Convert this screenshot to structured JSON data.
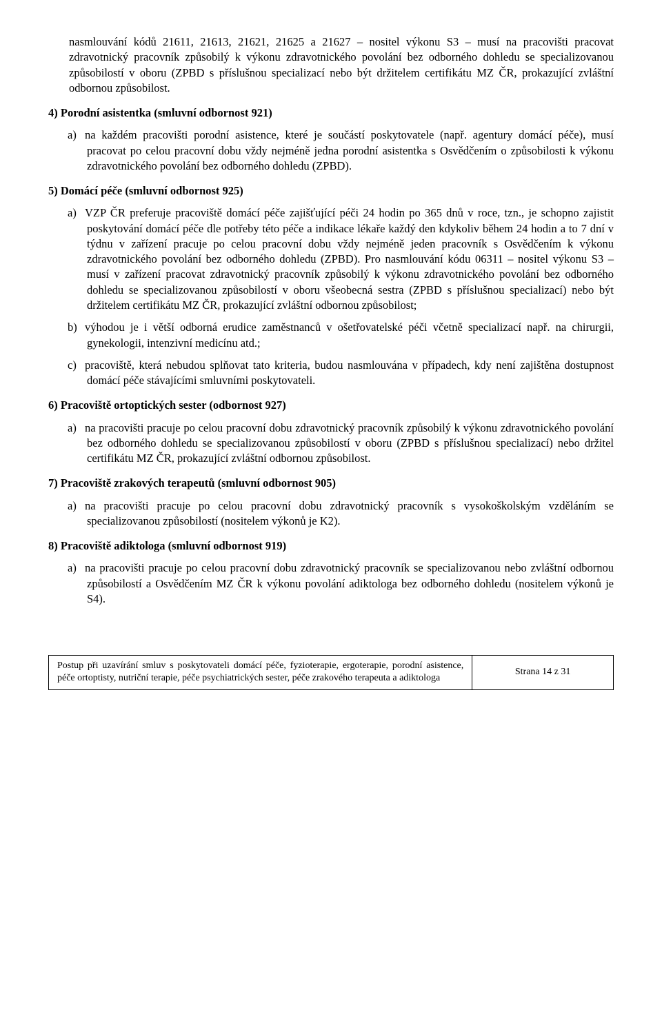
{
  "openingPara": "nasmlouvání kódů 21611, 21613, 21621, 21625 a 21627 – nositel výkonu S3 – musí na pracovišti pracovat zdravotnický pracovník způsobilý k výkonu zdravotnického povolání bez odborného dohledu se specializovanou způsobilostí v oboru (ZPBD s příslušnou specializací nebo být držitelem certifikátu MZ ČR, prokazující zvláštní odbornou způsobilost.",
  "section4": {
    "heading": "4) Porodní asistentka (smluvní odbornost 921)",
    "items": {
      "a": "na každém pracovišti porodní asistence, které je součástí poskytovatele (např. agentury domácí péče), musí pracovat po celou pracovní dobu vždy nejméně jedna porodní asistentka s Osvědčením o způsobilosti k výkonu zdravotnického povolání bez odborného dohledu (ZPBD)."
    }
  },
  "section5": {
    "heading": "5) Domácí péče (smluvní odbornost 925)",
    "items": {
      "a": "VZP ČR preferuje pracoviště domácí péče zajišťující péči 24 hodin po 365 dnů v roce, tzn., je schopno zajistit poskytování domácí péče dle potřeby této péče a indikace lékaře každý den kdykoliv během 24 hodin a to 7 dní v týdnu v zařízení pracuje po celou pracovní dobu vždy nejméně jeden pracovník s Osvědčením k výkonu zdravotnického povolání bez odborného dohledu (ZPBD). Pro nasmlouvání kódu 06311 – nositel výkonu S3 – musí v zařízení pracovat zdravotnický pracovník způsobilý k výkonu zdravotnického povolání bez odborného dohledu se specializovanou způsobilostí v oboru všeobecná sestra (ZPBD s příslušnou specializací) nebo být držitelem certifikátu MZ ČR, prokazující zvláštní odbornou způsobilost;",
      "b": "výhodou je i větší odborná erudice zaměstnanců v ošetřovatelské péči včetně specializací např. na chirurgii, gynekologii, intenzivní medicínu atd.;",
      "c": "pracoviště, která nebudou splňovat tato kriteria, budou nasmlouvána v případech, kdy není zajištěna dostupnost domácí péče stávajícími smluvními poskytovateli."
    }
  },
  "section6": {
    "heading": "6) Pracoviště ortoptických sester (odbornost 927)",
    "items": {
      "a": "na pracovišti pracuje po celou pracovní dobu zdravotnický pracovník způsobilý k výkonu zdravotnického povolání bez odborného dohledu se specializovanou způsobilostí v oboru (ZPBD s příslušnou specializací) nebo držitel certifikátu MZ ČR, prokazující zvláštní odbornou způsobilost."
    }
  },
  "section7": {
    "heading": "7)  Pracoviště zrakových terapeutů (smluvní odbornost 905)",
    "items": {
      "a": "na pracovišti pracuje po celou pracovní dobu zdravotnický pracovník s vysokoškolským vzděláním se specializovanou způsobilostí (nositelem výkonů je K2)."
    }
  },
  "section8": {
    "heading": "8)  Pracoviště adiktologa (smluvní odbornost 919)",
    "items": {
      "a": "na pracovišti pracuje po celou pracovní dobu zdravotnický pracovník se specializovanou nebo zvláštní odbornou způsobilostí a Osvědčením MZ ČR k výkonu povolání adiktologa bez odborného dohledu (nositelem výkonů je S4)."
    }
  },
  "footer": {
    "left": "Postup při uzavírání smluv s poskytovateli domácí péče, fyzioterapie, ergoterapie, porodní asistence, péče ortoptisty, nutriční terapie, péče psychiatrických sester, péče zrakového terapeuta a adiktologa",
    "right": "Strana 14 z 31"
  }
}
